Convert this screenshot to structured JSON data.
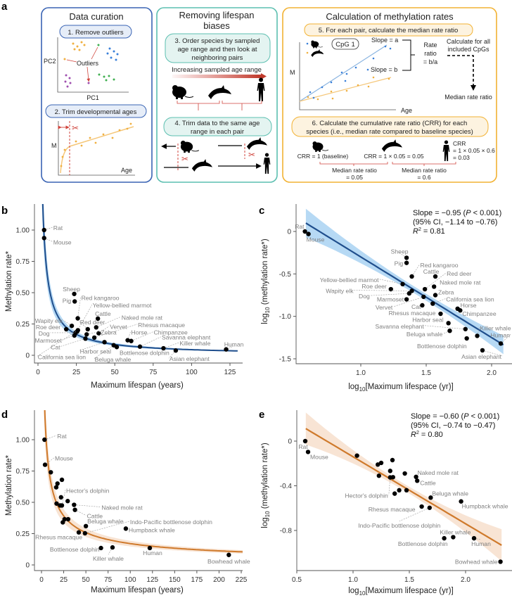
{
  "panel_a": {
    "letter": "a",
    "curation": {
      "title": "Data curation",
      "step1": "1. Remove outliers",
      "pc2": "PC2",
      "pc1": "PC1",
      "outliers": "Outliers",
      "step2": "2. Trim developmental ages",
      "m": "M",
      "age": "Age"
    },
    "biases": {
      "title_lines": [
        "Removing lifespan",
        "biases"
      ],
      "step3_lines": [
        "3. Order species by sampled",
        "age range and then look at",
        "neighboring pairs"
      ],
      "arrow_label": "Increasing sampled age range",
      "step4_lines": [
        "4. Trim data to the same age",
        "range in each pair"
      ]
    },
    "rates": {
      "title": "Calculation of methylation rates",
      "step5": "5. For each pair, calculate the median rate ratio",
      "cpg": "CpG 1",
      "slope_a": "Slope = a",
      "slope_b": "Slope = b",
      "rate_ratio_lines": [
        "Rate",
        "ratio",
        "= b/a"
      ],
      "calc_all_lines": [
        "Calculate for all",
        "included CpGs"
      ],
      "median": "Median rate ratio",
      "m": "M",
      "age": "Age",
      "step6_lines": [
        "6. Calculate the cumulative rate ratio (CRR) for each",
        "species (i.e., median rate compared to baseline species)"
      ],
      "crr1": "CRR = 1 (baseline)",
      "crr2": "CRR = 1 × 0.05 = 0.05",
      "crr3_lines": [
        "CRR",
        "= 1 × 0.05 × 0.6",
        "= 0.03"
      ],
      "mr1_lines": [
        "Median rate ratio",
        "= 0.05"
      ],
      "mr2_lines": [
        "Median rate ratio",
        "= 0.6"
      ]
    }
  },
  "colors": {
    "curation": "#3a64b4",
    "biases": "#5cbfb0",
    "rates": "#f2b233",
    "blue_fit": "#1f4e8c",
    "blue_band": "#a9d2f2",
    "orange_fit": "#cf7a2c",
    "orange_band": "#f7dfcc",
    "red": "#d0443c"
  },
  "chart_data": [
    {
      "panel": "b",
      "type": "scatter",
      "xlabel": "Maximum lifespan (years)",
      "ylabel": "Methylation rate*",
      "xlim": [
        0,
        130
      ],
      "ylim": [
        0,
        1.21
      ],
      "xticks": [
        0,
        25,
        50,
        75,
        100,
        125
      ],
      "xtick_labels": [
        "0",
        "25",
        "50",
        "75",
        "100",
        "125"
      ],
      "yticks": [
        0,
        0.25,
        0.5,
        0.75,
        1.0
      ],
      "ytick_labels": [
        "0",
        "0.25",
        "0.50",
        "0.75",
        "1.00"
      ],
      "fit": {
        "model": "power",
        "coef": 3.55,
        "exponent": -0.95,
        "color": "blue"
      },
      "points": [
        {
          "name": "Rat",
          "x": 4,
          "y": 1.0
        },
        {
          "name": "Mouse",
          "x": 4,
          "y": 0.936
        },
        {
          "name": "Sheep",
          "x": 23.6,
          "y": 0.49
        },
        {
          "name": "Pig",
          "x": 23.9,
          "y": 0.43
        },
        {
          "name": "Red kangaroo",
          "x": 25.9,
          "y": 0.295
        },
        {
          "name": "Yellow-bellied marmot",
          "x": 25.5,
          "y": 0.19
        },
        {
          "name": "Cattle",
          "x": 39,
          "y": 0.293
        },
        {
          "name": "Wapity elk",
          "x": 22,
          "y": 0.235
        },
        {
          "name": "Roe deer",
          "x": 18.4,
          "y": 0.208
        },
        {
          "name": "Dog",
          "x": 24.5,
          "y": 0.18
        },
        {
          "name": "Red deer",
          "x": 32.4,
          "y": 0.208
        },
        {
          "name": "Naked mole rat",
          "x": 37.9,
          "y": 0.223
        },
        {
          "name": "Vervet",
          "x": 39.5,
          "y": 0.176
        },
        {
          "name": "Marmoset",
          "x": 23.7,
          "y": 0.158
        },
        {
          "name": "Zebra",
          "x": 31.7,
          "y": 0.167
        },
        {
          "name": "Cat",
          "x": 30.9,
          "y": 0.133
        },
        {
          "name": "Rhesus macaque",
          "x": 36.7,
          "y": 0.141
        },
        {
          "name": "Harbor seal",
          "x": 43.3,
          "y": 0.105
        },
        {
          "name": "California sea lion",
          "x": 26,
          "y": 0.2
        },
        {
          "name": "Horse",
          "x": 58.4,
          "y": 0.12
        },
        {
          "name": "Chimpanzee",
          "x": 60.7,
          "y": 0.114
        },
        {
          "name": "Savanna elephant",
          "x": 66.4,
          "y": 0.069
        },
        {
          "name": "Killer whale",
          "x": 81.7,
          "y": 0.056
        },
        {
          "name": "Bottlenose dolphin",
          "x": 51.3,
          "y": 0.066
        },
        {
          "name": "Beluga whale",
          "x": 49.3,
          "y": 0.08
        },
        {
          "name": "Asian elephant",
          "x": 89.7,
          "y": 0.038
        },
        {
          "name": "Human",
          "x": 122.5,
          "y": 0.047
        }
      ]
    },
    {
      "panel": "c",
      "type": "scatter",
      "xlabel_parts": [
        "log",
        "10",
        "[Maximum lifespace (yr)]"
      ],
      "ylabel_parts": [
        "log",
        "10",
        " (methylation rate*)"
      ],
      "xlim": [
        0.5,
        2.15
      ],
      "ylim": [
        -1.55,
        0.32
      ],
      "xticks": [
        1.0,
        1.5,
        2.0
      ],
      "xtick_labels": [
        "1.0",
        "1.5",
        "2.0"
      ],
      "yticks": [
        0,
        -0.5,
        -1.0,
        -1.5
      ],
      "ytick_labels": [
        "0",
        "-0.5",
        "-1.0",
        "-1.5"
      ],
      "fit": {
        "model": "linear",
        "slope": -0.95,
        "intercept": 0.65,
        "x_range": [
          0.58,
          2.09
        ],
        "color": "blue"
      },
      "stats": {
        "slope": "Slope = −0.95 (",
        "p": "P",
        "p_rest": " < 0.001)",
        "ci": "(95% CI, −1.14 to −0.76)",
        "r": "R",
        "r_sup": "2",
        "r_rest": " = 0.81"
      },
      "points": [
        {
          "name": "Rat",
          "x": 0.573,
          "y": 0
        },
        {
          "name": "Mouse",
          "x": 0.6,
          "y": -0.03
        },
        {
          "name": "Sheep",
          "x": 1.35,
          "y": -0.31
        },
        {
          "name": "Pig",
          "x": 1.35,
          "y": -0.37
        },
        {
          "name": "Red kangaroo",
          "x": 1.39,
          "y": -0.53
        },
        {
          "name": "Cattle",
          "x": 1.57,
          "y": -0.53
        },
        {
          "name": "Red deer",
          "x": 1.49,
          "y": -0.68
        },
        {
          "name": "Naked mole rat",
          "x": 1.56,
          "y": -0.65
        },
        {
          "name": "Yellow-bellied marmot",
          "x": 1.32,
          "y": -0.62
        },
        {
          "name": "Roe deer",
          "x": 1.23,
          "y": -0.68
        },
        {
          "name": "Wapity elk",
          "x": 1.39,
          "y": -0.7
        },
        {
          "name": "Dog",
          "x": 1.37,
          "y": -0.73
        },
        {
          "name": "Marmoset",
          "x": 1.35,
          "y": -0.8
        },
        {
          "name": "Zebra",
          "x": 1.57,
          "y": -0.75
        },
        {
          "name": "Vervet",
          "x": 1.48,
          "y": -0.77
        },
        {
          "name": "California sea lion",
          "x": 1.55,
          "y": -0.85
        },
        {
          "name": "Cat",
          "x": 1.47,
          "y": -0.87
        },
        {
          "name": "Horse",
          "x": 1.74,
          "y": -0.91
        },
        {
          "name": "Chimpanzee",
          "x": 1.76,
          "y": -0.93
        },
        {
          "name": "Rhesus macaque",
          "x": 1.61,
          "y": -0.97
        },
        {
          "name": "Harbor seal",
          "x": 1.67,
          "y": -1.08
        },
        {
          "name": "Savanna elephant",
          "x": 1.8,
          "y": -1.15
        },
        {
          "name": "Beluga whale",
          "x": 1.68,
          "y": -1.17
        },
        {
          "name": "Killer whale",
          "x": 1.89,
          "y": -1.23
        },
        {
          "name": "Human",
          "x": 2.07,
          "y": -1.32
        },
        {
          "name": "Bottlenose dolphin",
          "x": 1.81,
          "y": -1.26
        },
        {
          "name": "Asian elephant",
          "x": 1.93,
          "y": -1.4
        }
      ]
    },
    {
      "panel": "d",
      "type": "scatter",
      "xlabel": "Maximum lifespan (years)",
      "ylabel": "Methylation rate*",
      "xlim": [
        0,
        230
      ],
      "ylim": [
        0,
        1.21
      ],
      "xticks": [
        0,
        25,
        50,
        75,
        100,
        125,
        150,
        175,
        200,
        225
      ],
      "xtick_labels": [
        "0",
        "25",
        "50",
        "75",
        "100",
        "125",
        "150",
        "175",
        "200",
        "225"
      ],
      "yticks": [
        0,
        0.25,
        0.5,
        0.75,
        1.0
      ],
      "ytick_labels": [
        "0",
        "0.25",
        "0.50",
        "0.75",
        "1.00"
      ],
      "fit": {
        "model": "power",
        "coef": 2.7,
        "exponent": -0.6,
        "color": "orange"
      },
      "points": [
        {
          "name": "Rat",
          "x": 3.4,
          "y": 1.0
        },
        {
          "name": "Mouse",
          "x": 4,
          "y": 0.8
        },
        {
          "name": "",
          "x": 10.5,
          "y": 0.74
        },
        {
          "name": "",
          "x": 23,
          "y": 0.68
        },
        {
          "name": "",
          "x": 18,
          "y": 0.65
        },
        {
          "name": "",
          "x": 16.6,
          "y": 0.62
        },
        {
          "name": "",
          "x": 22,
          "y": 0.54
        },
        {
          "name": "",
          "x": 29.5,
          "y": 0.51
        },
        {
          "name": "",
          "x": 17,
          "y": 0.49
        },
        {
          "name": "",
          "x": 21,
          "y": 0.475
        },
        {
          "name": "Hector's dolphin",
          "x": 23,
          "y": 0.475
        },
        {
          "name": "Naked mole rat",
          "x": 36.7,
          "y": 0.48
        },
        {
          "name": "Cattle",
          "x": 37.7,
          "y": 0.44
        },
        {
          "name": "",
          "x": 26,
          "y": 0.365
        },
        {
          "name": "",
          "x": 30,
          "y": 0.365
        },
        {
          "name": "",
          "x": 24,
          "y": 0.34
        },
        {
          "name": "Beluga whale",
          "x": 50,
          "y": 0.31
        },
        {
          "name": "Rhesus macaque",
          "x": 42,
          "y": 0.26
        },
        {
          "name": "Indo-Pacific bottlenose dolphin",
          "x": 49,
          "y": 0.253
        },
        {
          "name": "Humpback whale",
          "x": 95,
          "y": 0.29
        },
        {
          "name": "Bottlenose dolphin",
          "x": 67,
          "y": 0.135
        },
        {
          "name": "Killer whale",
          "x": 80,
          "y": 0.14
        },
        {
          "name": "Human",
          "x": 122,
          "y": 0.135
        },
        {
          "name": "Bowhead whale",
          "x": 211,
          "y": 0.08
        }
      ]
    },
    {
      "panel": "e",
      "type": "scatter",
      "xlabel_parts": [
        "log",
        "10",
        "[Maximum lifespace (yr)]"
      ],
      "ylabel_parts": [
        "log",
        "10",
        " (methylation rate*)"
      ],
      "xlim": [
        0.5,
        2.35
      ],
      "ylim": [
        -1.15,
        0.28
      ],
      "xticks": [
        0.5,
        1.0,
        1.5,
        2.0
      ],
      "xtick_labels": [
        "0.5",
        "1.0",
        "1.5",
        "2.0"
      ],
      "yticks": [
        0,
        -0.4,
        -0.8
      ],
      "ytick_labels": [
        "0",
        "-0.4",
        "-0.8"
      ],
      "fit": {
        "model": "linear",
        "slope": -0.6,
        "intercept": 0.46,
        "x_range": [
          0.58,
          2.32
        ],
        "color": "orange"
      },
      "stats": {
        "slope": "Slope = −0.60 (",
        "p": "P",
        "p_rest": " < 0.001)",
        "ci": "(95% CI, −0.74 to −0.47)",
        "r": "R",
        "r_sup": "2",
        "r_rest": " = 0.80"
      },
      "points": [
        {
          "name": "Rat",
          "x": 0.575,
          "y": 0
        },
        {
          "name": "Mouse",
          "x": 0.6,
          "y": -0.097
        },
        {
          "name": "",
          "x": 1.035,
          "y": -0.13
        },
        {
          "name": "",
          "x": 1.22,
          "y": -0.21
        },
        {
          "name": "",
          "x": 1.25,
          "y": -0.195
        },
        {
          "name": "",
          "x": 1.35,
          "y": -0.17
        },
        {
          "name": "",
          "x": 1.33,
          "y": -0.267
        },
        {
          "name": "",
          "x": 1.23,
          "y": -0.31
        },
        {
          "name": "Hector's dolphin",
          "x": 1.33,
          "y": -0.325
        },
        {
          "name": "",
          "x": 1.355,
          "y": -0.323
        },
        {
          "name": "",
          "x": 1.46,
          "y": -0.29
        },
        {
          "name": "Naked mole rat",
          "x": 1.56,
          "y": -0.32
        },
        {
          "name": "Cattle",
          "x": 1.57,
          "y": -0.355
        },
        {
          "name": "",
          "x": 1.37,
          "y": -0.47
        },
        {
          "name": "",
          "x": 1.41,
          "y": -0.44
        },
        {
          "name": "",
          "x": 1.475,
          "y": -0.44
        },
        {
          "name": "Beluga whale",
          "x": 1.69,
          "y": -0.506
        },
        {
          "name": "Humpback whale",
          "x": 1.96,
          "y": -0.54
        },
        {
          "name": "Rhesus macaque",
          "x": 1.61,
          "y": -0.586
        },
        {
          "name": "Indo-Pacific bottlenose dolphin",
          "x": 1.68,
          "y": -0.597
        },
        {
          "name": "Bottlenose dolphin",
          "x": 1.81,
          "y": -0.87
        },
        {
          "name": "Killer whale",
          "x": 1.89,
          "y": -0.86
        },
        {
          "name": "Human",
          "x": 2.075,
          "y": -0.87
        },
        {
          "name": "Bowhead whale",
          "x": 2.31,
          "y": -1.08
        }
      ]
    }
  ]
}
